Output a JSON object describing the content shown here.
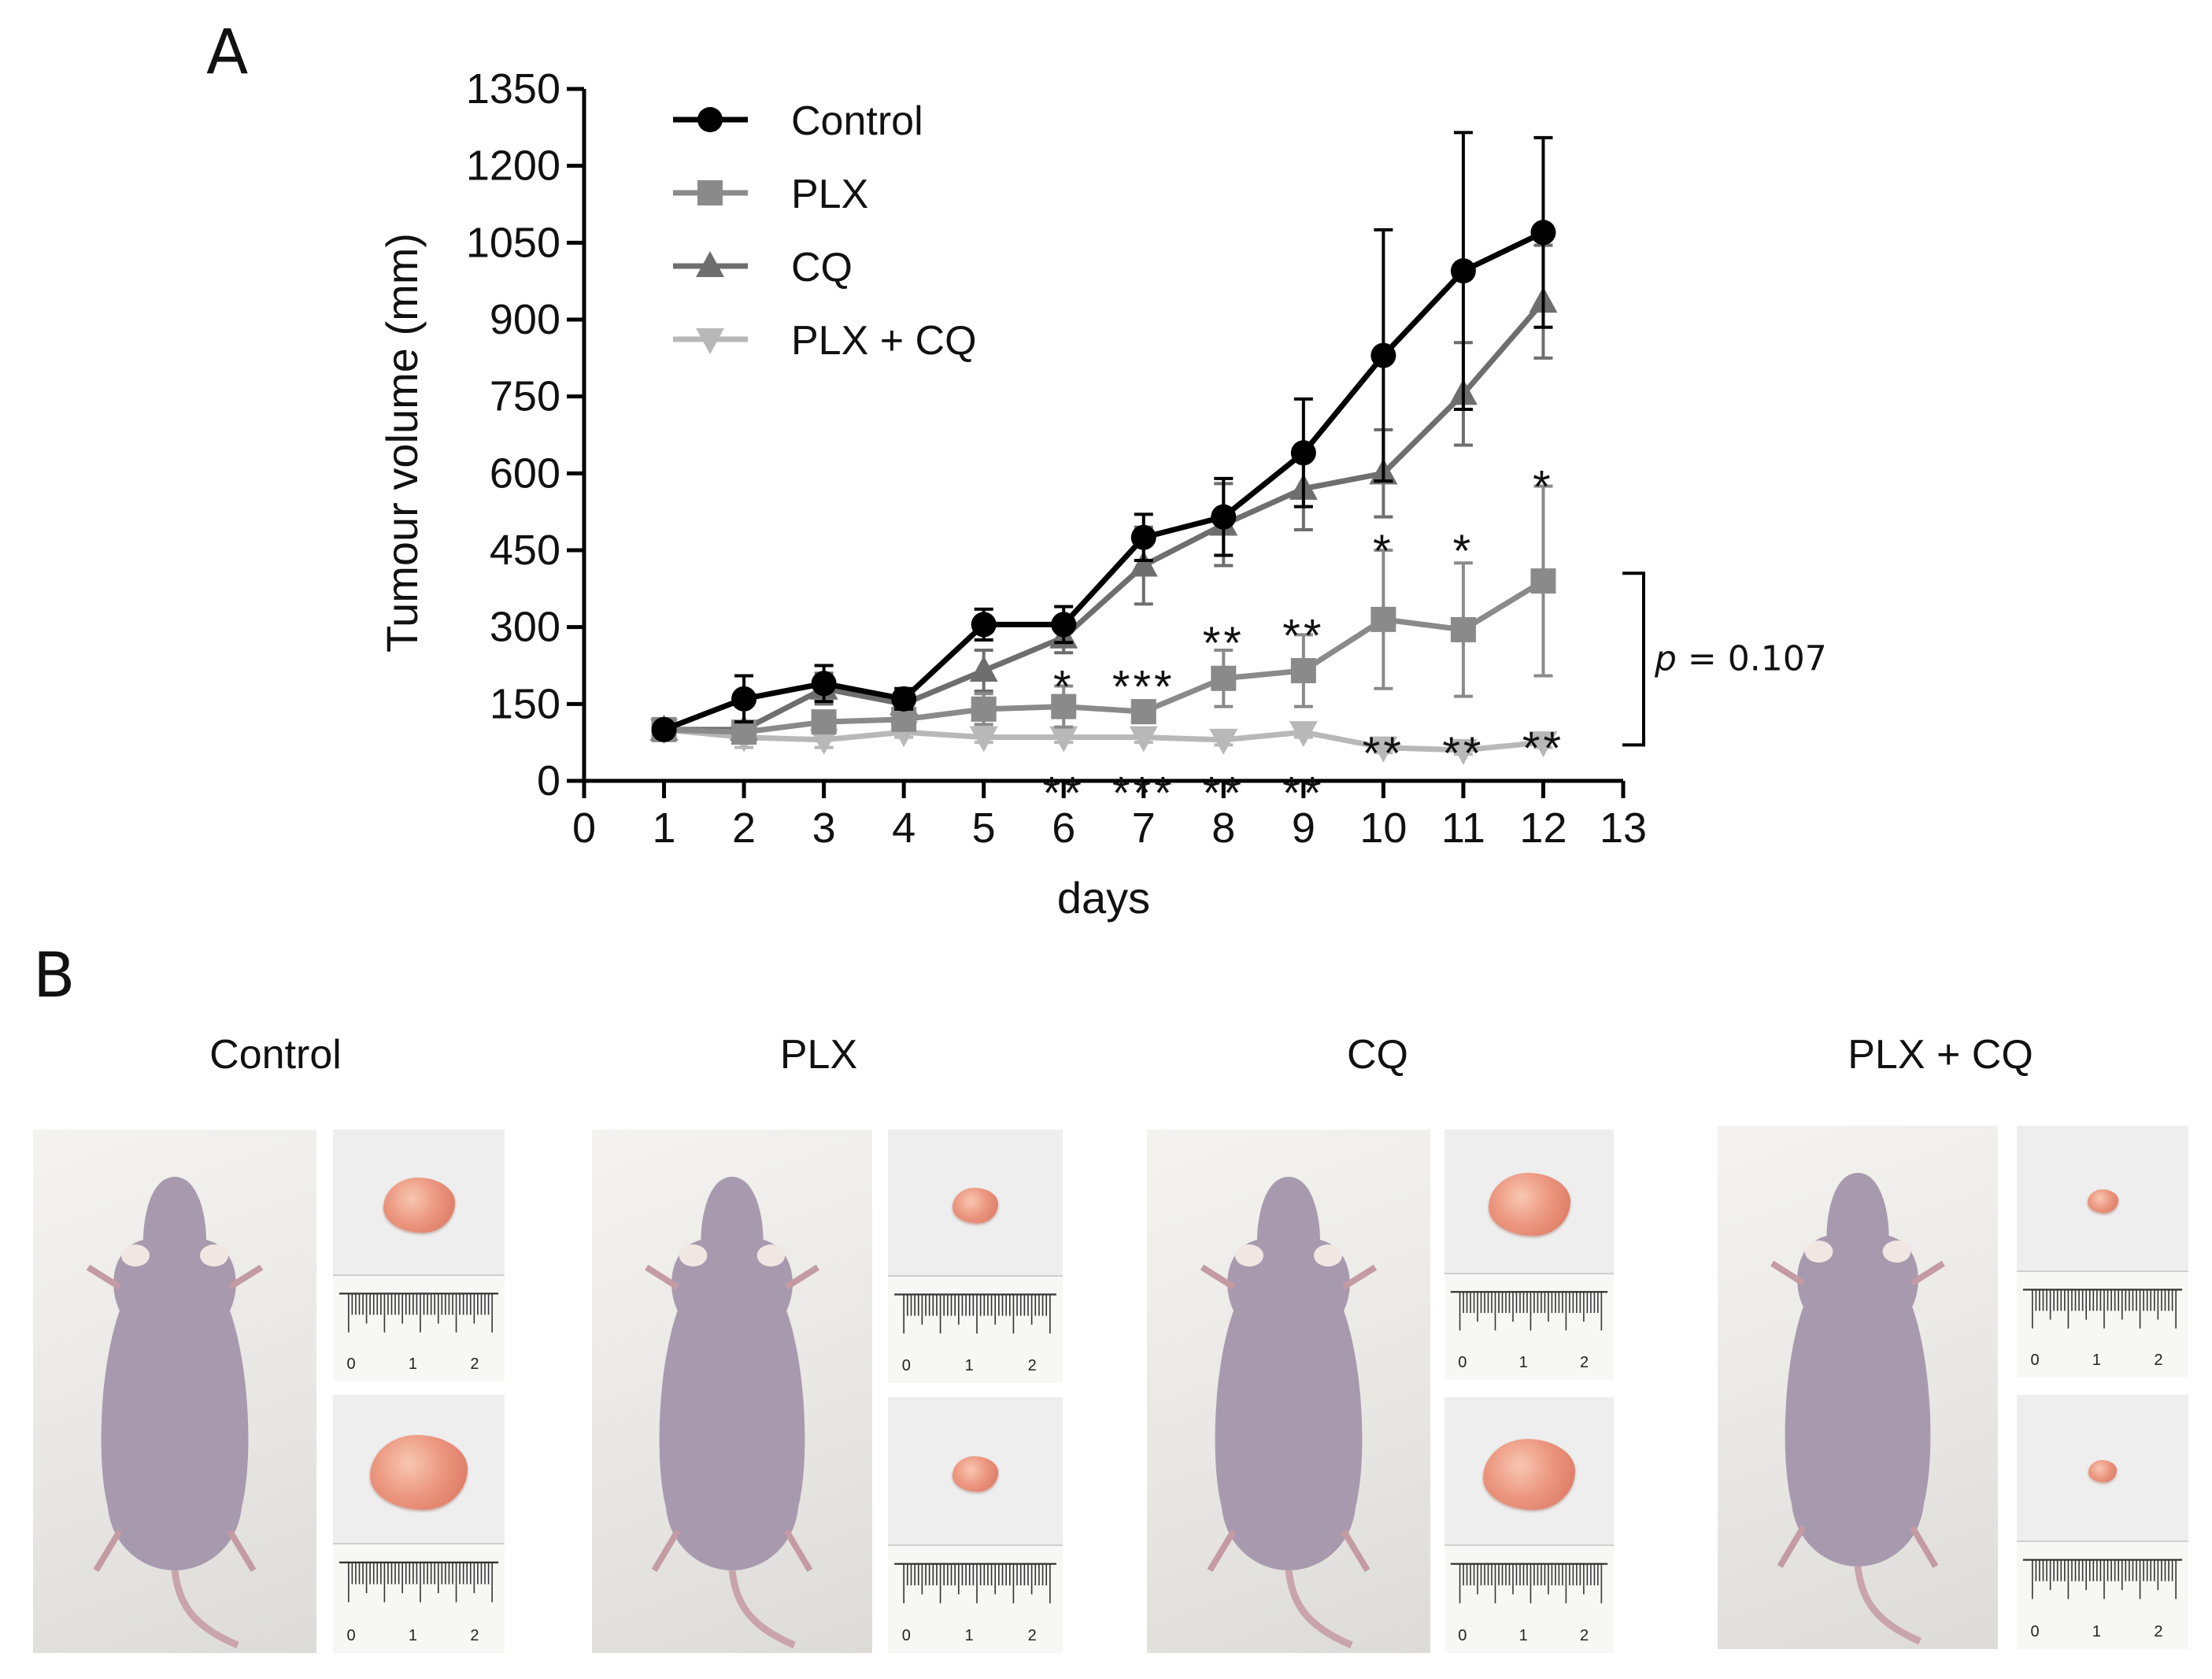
{
  "panel_a_label": "A",
  "panel_b_label": "B",
  "chart_data": {
    "type": "line",
    "title": "",
    "xlabel": "days",
    "ylabel": "Tumour volume (mm)",
    "xlim": [
      0,
      13
    ],
    "ylim": [
      0,
      1350
    ],
    "x_ticks": [
      0,
      1,
      2,
      3,
      4,
      5,
      6,
      7,
      8,
      9,
      10,
      11,
      12,
      13
    ],
    "y_ticks": [
      0,
      150,
      300,
      450,
      600,
      750,
      900,
      1050,
      1200,
      1350
    ],
    "x": [
      1,
      2,
      3,
      4,
      5,
      6,
      7,
      8,
      9,
      10,
      11,
      12
    ],
    "series": [
      {
        "name": "Control",
        "marker": "circle",
        "color": "#000000",
        "values": [
          100,
          160,
          190,
          160,
          305,
          305,
          475,
          515,
          640,
          830,
          995,
          1070
        ],
        "errors": [
          5,
          45,
          35,
          20,
          30,
          35,
          45,
          75,
          105,
          245,
          270,
          185
        ]
      },
      {
        "name": "PLX",
        "marker": "square",
        "color": "#8a8a8a",
        "values": [
          100,
          95,
          115,
          120,
          140,
          145,
          135,
          200,
          215,
          315,
          295,
          390
        ],
        "errors": [
          5,
          15,
          15,
          15,
          30,
          40,
          20,
          55,
          70,
          135,
          130,
          185
        ]
      },
      {
        "name": "CQ",
        "marker": "triangle-up",
        "color": "#6e6e6e",
        "values": [
          100,
          100,
          180,
          150,
          215,
          280,
          420,
          500,
          570,
          600,
          755,
          935
        ],
        "errors": [
          5,
          15,
          30,
          20,
          40,
          30,
          75,
          80,
          80,
          85,
          100,
          110
        ]
      },
      {
        "name": "PLX + CQ",
        "marker": "triangle-down",
        "color": "#b8b8b8",
        "values": [
          100,
          85,
          80,
          95,
          85,
          85,
          85,
          80,
          95,
          65,
          60,
          75
        ],
        "errors": [
          5,
          20,
          15,
          10,
          10,
          10,
          10,
          10,
          10,
          10,
          8,
          10
        ]
      }
    ],
    "annotations": [
      {
        "text": "*",
        "x": 6,
        "y": 205
      },
      {
        "text": "***",
        "x": 7,
        "y": 205
      },
      {
        "text": "**",
        "x": 8,
        "y": 290
      },
      {
        "text": "**",
        "x": 9,
        "y": 305
      },
      {
        "text": "*",
        "x": 10,
        "y": 470
      },
      {
        "text": "*",
        "x": 11,
        "y": 470
      },
      {
        "text": "*",
        "x": 12,
        "y": 595
      },
      {
        "text": "**",
        "x": 10,
        "y": 75
      },
      {
        "text": "**",
        "x": 11,
        "y": 75
      },
      {
        "text": "**",
        "x": 12,
        "y": 85
      },
      {
        "text": "**",
        "x": 6,
        "y": -2
      },
      {
        "text": "***",
        "x": 7,
        "y": -2
      },
      {
        "text": "**",
        "x": 8,
        "y": -2
      },
      {
        "text": "**",
        "x": 9,
        "y": -2
      }
    ],
    "bracket": {
      "y_top": 405,
      "y_bottom": 70,
      "label_prefix": "p",
      "label_value": " = 0.107"
    },
    "legend_position": "top-left"
  },
  "photo_groups": [
    {
      "title": "Control"
    },
    {
      "title": "PLX"
    },
    {
      "title": "CQ"
    },
    {
      "title": "PLX + CQ"
    }
  ],
  "ruler_labels": [
    "0",
    "1",
    "2"
  ]
}
